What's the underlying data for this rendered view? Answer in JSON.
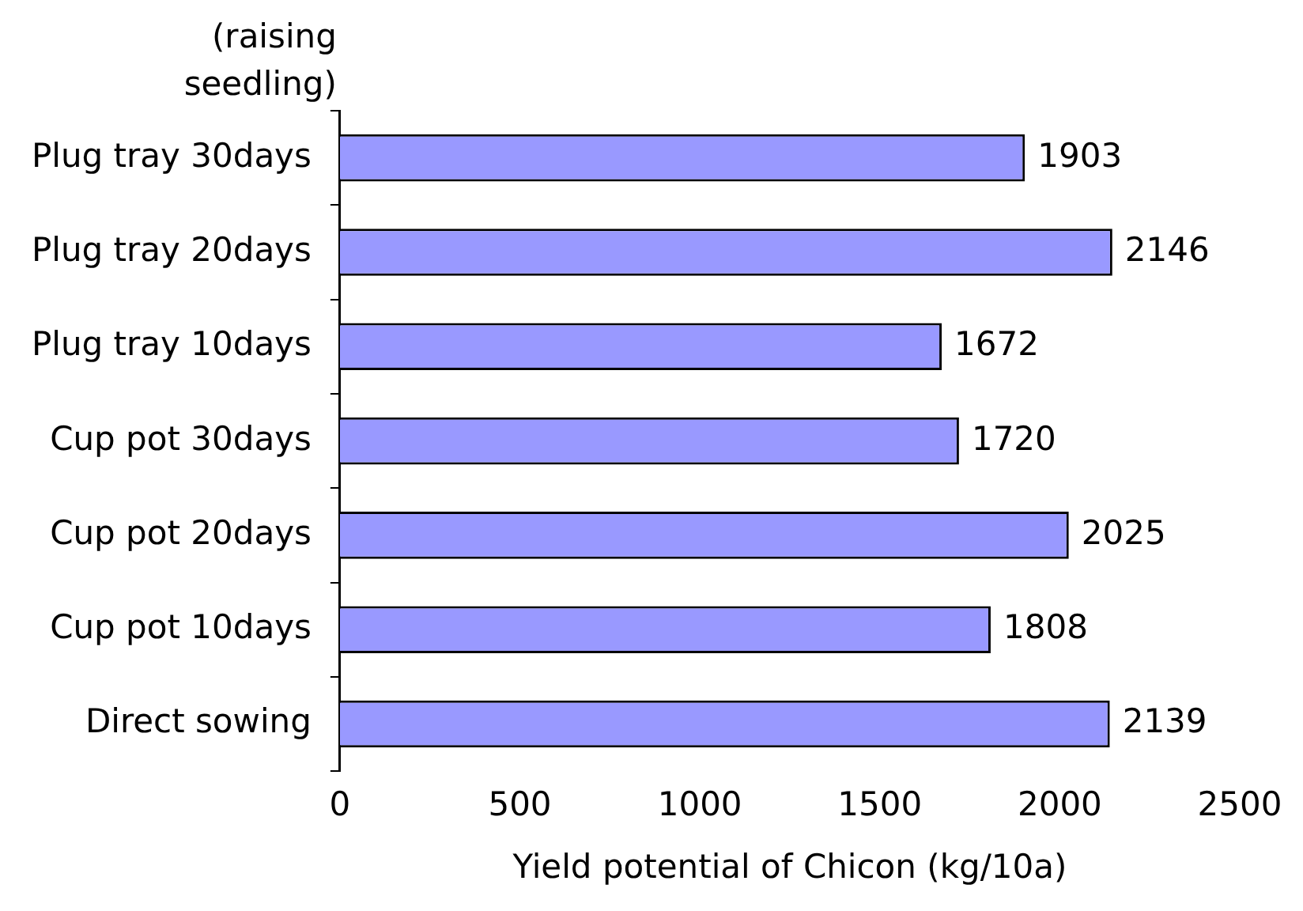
{
  "chart_data": {
    "type": "bar",
    "orientation": "horizontal",
    "ylabel": "(raising seedling)",
    "xlabel": "Yield potential of Chicon (kg/10a)",
    "categories": [
      "Plug tray 30days",
      "Plug tray 20days",
      "Plug tray 10days",
      "Cup pot 30days",
      "Cup pot 20days",
      "Cup pot 10days",
      "Direct sowing"
    ],
    "values": [
      1903,
      2146,
      1672,
      1720,
      2025,
      1808,
      2139
    ],
    "color": "#9999ff",
    "xlim": [
      0,
      2500
    ],
    "xticks": [
      0,
      500,
      1000,
      1500,
      2000,
      2500
    ],
    "grid": false,
    "legend": false,
    "data_labels": true
  }
}
